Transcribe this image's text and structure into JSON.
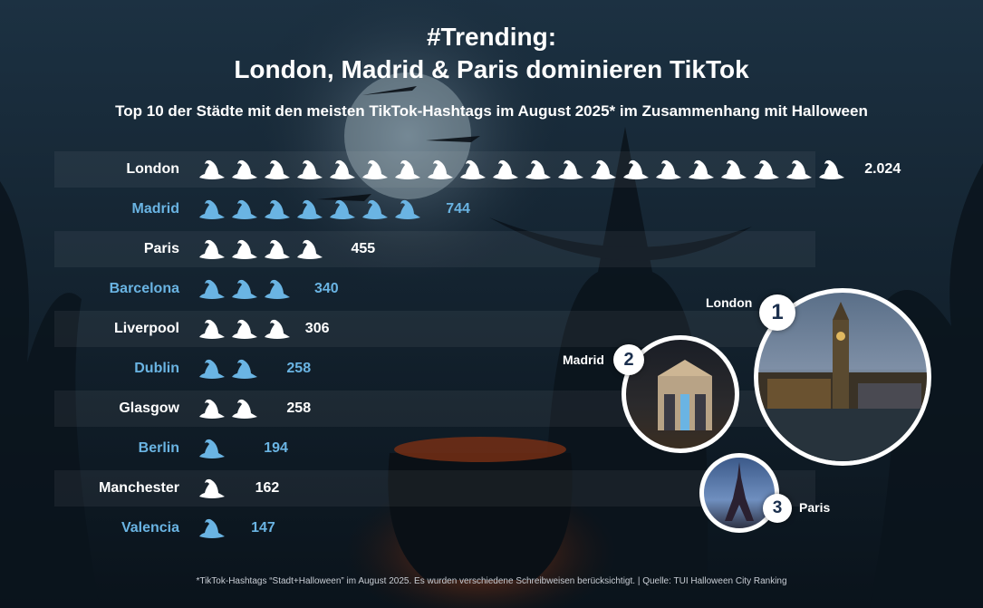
{
  "title_line1": "#Trending:",
  "title_line2": "London, Madrid & Paris dominieren TikTok",
  "subtitle": "Top 10 der Städte mit den meisten TikTok-Hashtags im August 2025* im Zusammenhang mit Halloween",
  "colors": {
    "white": "#ffffff",
    "blue": "#6ab4e3",
    "background": "#0f1c28"
  },
  "icon": "witch-hat-icon",
  "chart_data": {
    "type": "pictograph",
    "unit_per_icon": 100,
    "categories": [
      "London",
      "Madrid",
      "Paris",
      "Barcelona",
      "Liverpool",
      "Dublin",
      "Glasgow",
      "Berlin",
      "Manchester",
      "Valencia"
    ],
    "values": [
      2024,
      744,
      455,
      340,
      306,
      258,
      258,
      194,
      162,
      147
    ],
    "value_labels": [
      "2.024",
      "744",
      "455",
      "340",
      "306",
      "258",
      "258",
      "194",
      "162",
      "147"
    ]
  },
  "photos": [
    {
      "rank": "1",
      "city": "London"
    },
    {
      "rank": "2",
      "city": "Madrid"
    },
    {
      "rank": "3",
      "city": "Paris"
    }
  ],
  "footnote": "*TikTok-Hashtags “Stadt+Halloween” im August 2025. Es wurden verschiedene Schreibweisen berücksichtigt.   |   Quelle: TUI Halloween City Ranking"
}
